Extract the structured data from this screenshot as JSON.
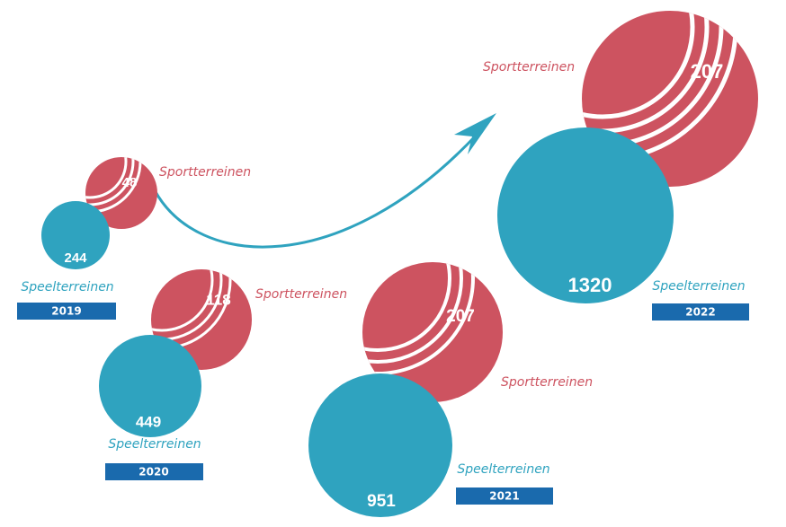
{
  "years": [
    {
      "year": "2019",
      "speel_label": "Speelterreinen",
      "speel_value": 244,
      "sport_label": "Sportterreinen",
      "sport_value": 48
    },
    {
      "year": "2020",
      "speel_label": "Speelterreinen",
      "speel_value": 449,
      "sport_label": "Sportterreinen",
      "sport_value": 118
    },
    {
      "year": "2021",
      "speel_label": "Speelterreinen",
      "speel_value": 951,
      "sport_label": "Sportterreinen",
      "sport_value": 207
    },
    {
      "year": "2022",
      "speel_label": "Speelterreinen",
      "speel_value": 1320,
      "sport_label": "Sportterreinen",
      "sport_value": 207
    }
  ]
}
